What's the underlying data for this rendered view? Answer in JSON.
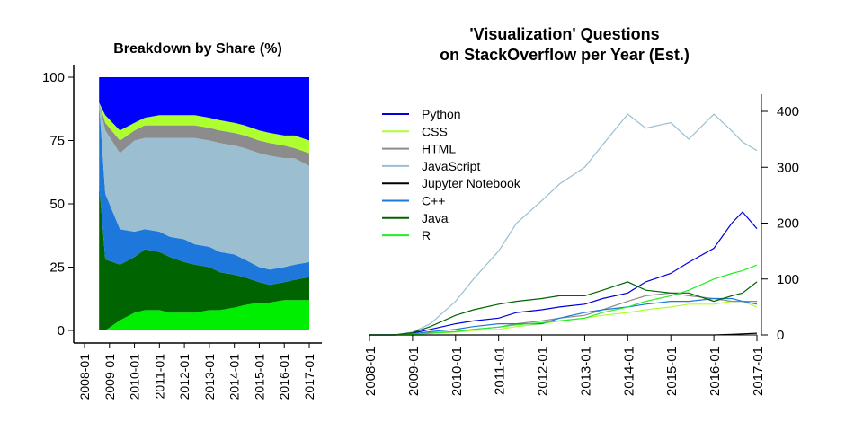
{
  "chart_data": [
    {
      "type": "area",
      "title": "Breakdown by Share (%)",
      "xlabel": "",
      "ylabel": "",
      "ylim": [
        0,
        100
      ],
      "y_ticks": [
        0,
        25,
        50,
        75,
        100
      ],
      "x_ticks": [
        "2008-01",
        "2009-01",
        "2010-01",
        "2011-01",
        "2012-01",
        "2013-01",
        "2014-01",
        "2015-01",
        "2016-01",
        "2017-01"
      ],
      "stacked": true,
      "x": [
        "2008-08",
        "2008-11",
        "2009-06",
        "2010-01",
        "2010-06",
        "2011-01",
        "2011-06",
        "2012-01",
        "2012-06",
        "2013-01",
        "2013-06",
        "2014-01",
        "2014-06",
        "2015-01",
        "2015-06",
        "2016-01",
        "2016-06",
        "2017-01"
      ],
      "series": [
        {
          "name": "R",
          "color": "#00ee00",
          "values": [
            0,
            0,
            4,
            7,
            8,
            8,
            7,
            7,
            7,
            8,
            8,
            9,
            10,
            11,
            11,
            12,
            12,
            12
          ]
        },
        {
          "name": "Java",
          "color": "#006400",
          "values": [
            58,
            28,
            22,
            22,
            24,
            23,
            22,
            20,
            19,
            17,
            15,
            13,
            11,
            8,
            7,
            7,
            8,
            9
          ]
        },
        {
          "name": "C++",
          "color": "#1e78dc",
          "values": [
            32,
            26,
            14,
            10,
            8,
            8,
            8,
            9,
            8,
            8,
            8,
            8,
            7,
            6,
            6,
            6,
            6,
            6
          ]
        },
        {
          "name": "JavaScript",
          "color": "#9bbfd0",
          "values": [
            0,
            25,
            30,
            36,
            36,
            37,
            39,
            40,
            42,
            42,
            43,
            43,
            44,
            45,
            45,
            43,
            42,
            38
          ]
        },
        {
          "name": "Jupyter Notebook",
          "color": "#000000",
          "values": [
            0,
            0,
            0,
            0,
            0,
            0,
            0,
            0,
            0,
            0,
            0,
            0,
            0,
            0,
            0,
            0,
            0,
            0
          ]
        },
        {
          "name": "HTML",
          "color": "#8c8c8c",
          "values": [
            0,
            3,
            5,
            4,
            5,
            5,
            5,
            5,
            5,
            5,
            5,
            5,
            5,
            5,
            5,
            5,
            4,
            5
          ]
        },
        {
          "name": "CSS",
          "color": "#adff2f",
          "values": [
            0,
            3,
            4,
            3,
            3,
            4,
            4,
            4,
            4,
            4,
            4,
            4,
            4,
            4,
            4,
            4,
            5,
            5
          ]
        },
        {
          "name": "Python",
          "color": "#0000ff",
          "values": [
            10,
            15,
            21,
            18,
            16,
            15,
            15,
            15,
            15,
            16,
            17,
            18,
            19,
            21,
            22,
            23,
            23,
            25
          ]
        }
      ]
    },
    {
      "type": "line",
      "title": "'Visualization' Questions",
      "subtitle": "on StackOverflow per Year (Est.)",
      "xlabel": "",
      "ylabel": "",
      "ylim": [
        0,
        400
      ],
      "y_ticks": [
        0,
        100,
        200,
        300,
        400
      ],
      "x_ticks": [
        "2008-01",
        "2009-01",
        "2010-01",
        "2011-01",
        "2012-01",
        "2013-01",
        "2014-01",
        "2015-01",
        "2016-01",
        "2017-01"
      ],
      "legend_position": "top-left",
      "x": [
        "2008-01",
        "2008-08",
        "2009-01",
        "2009-06",
        "2010-01",
        "2010-06",
        "2011-01",
        "2011-06",
        "2012-01",
        "2012-06",
        "2013-01",
        "2013-06",
        "2014-01",
        "2014-06",
        "2015-01",
        "2015-06",
        "2016-01",
        "2016-06",
        "2016-09",
        "2017-01"
      ],
      "series": [
        {
          "name": "Python",
          "color": "#0000dd",
          "values": [
            0,
            0,
            3,
            10,
            20,
            25,
            30,
            40,
            45,
            50,
            55,
            65,
            75,
            95,
            110,
            130,
            155,
            200,
            220,
            190
          ]
        },
        {
          "name": "CSS",
          "color": "#adff2f",
          "values": [
            0,
            0,
            1,
            3,
            5,
            8,
            10,
            15,
            20,
            25,
            30,
            35,
            40,
            45,
            50,
            55,
            55,
            60,
            60,
            50
          ]
        },
        {
          "name": "HTML",
          "color": "#8c8c8c",
          "values": [
            0,
            0,
            2,
            4,
            6,
            10,
            14,
            20,
            25,
            30,
            35,
            45,
            60,
            70,
            75,
            70,
            65,
            60,
            60,
            60
          ]
        },
        {
          "name": "JavaScript",
          "color": "#9bbfd0",
          "values": [
            0,
            0,
            5,
            20,
            60,
            100,
            150,
            200,
            240,
            270,
            300,
            340,
            395,
            370,
            380,
            350,
            395,
            365,
            345,
            330
          ]
        },
        {
          "name": "Jupyter Notebook",
          "color": "#000000",
          "values": [
            0,
            0,
            0,
            0,
            0,
            0,
            0,
            0,
            0,
            0,
            0,
            0,
            0,
            0,
            0,
            0,
            0,
            1,
            2,
            3
          ]
        },
        {
          "name": "C++",
          "color": "#1e78dc",
          "values": [
            0,
            0,
            2,
            6,
            10,
            15,
            20,
            20,
            20,
            30,
            40,
            45,
            50,
            55,
            60,
            60,
            65,
            65,
            60,
            55
          ]
        },
        {
          "name": "Java",
          "color": "#006400",
          "values": [
            0,
            0,
            4,
            15,
            35,
            45,
            55,
            60,
            65,
            70,
            70,
            80,
            95,
            80,
            75,
            75,
            60,
            70,
            75,
            95
          ]
        },
        {
          "name": "R",
          "color": "#22ee22",
          "values": [
            0,
            0,
            1,
            3,
            6,
            10,
            14,
            18,
            22,
            25,
            30,
            40,
            50,
            60,
            70,
            80,
            100,
            110,
            115,
            125
          ]
        }
      ]
    }
  ]
}
